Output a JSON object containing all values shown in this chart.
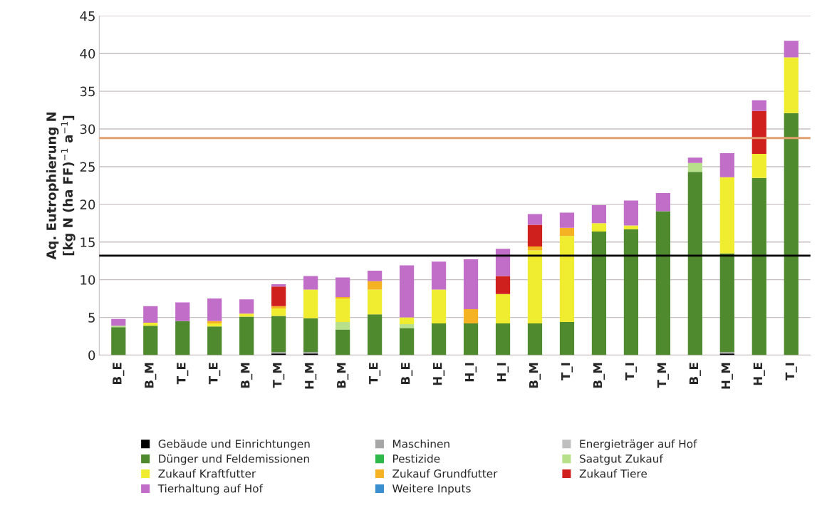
{
  "chart_data": {
    "type": "bar",
    "stacked": true,
    "ylabel": "Aq. Eutrophierung N\n[kg N (ha FF)$^{−1}$ a$^{−1}$]",
    "categories": [
      "B_E",
      "B_M",
      "T_E",
      "T_E",
      "B_M",
      "T_M",
      "H_M",
      "B_M",
      "T_E",
      "B_E",
      "H_E",
      "H_I",
      "H_I",
      "B_M",
      "T_I",
      "B_M",
      "T_I",
      "T_M",
      "B_E",
      "H_M",
      "H_E",
      "T_I"
    ],
    "series": [
      {
        "name": "Gebäude und Einrichtungen",
        "color": "#000000",
        "values": [
          0,
          0,
          0,
          0,
          0,
          0.2,
          0.2,
          0,
          0,
          0,
          0,
          0,
          0,
          0,
          0,
          0,
          0,
          0,
          0,
          0.2,
          0,
          0
        ]
      },
      {
        "name": "Maschinen",
        "color": "#a6a6a6",
        "values": [
          0,
          0,
          0,
          0,
          0,
          0.2,
          0.2,
          0,
          0,
          0,
          0,
          0,
          0,
          0,
          0,
          0,
          0,
          0,
          0,
          0.2,
          0,
          0
        ]
      },
      {
        "name": "Energieträger auf Hof",
        "color": "#bfbfbf",
        "values": [
          0,
          0,
          0,
          0,
          0,
          0,
          0,
          0,
          0,
          0,
          0,
          0,
          0,
          0,
          0,
          0,
          0,
          0,
          0,
          0,
          0,
          0
        ]
      },
      {
        "name": "Dünger und Feldemissionen",
        "color": "#4f8a2e",
        "values": [
          3.7,
          3.9,
          4.5,
          3.8,
          5.1,
          4.8,
          4.5,
          3.4,
          5.4,
          3.6,
          4.2,
          4.2,
          4.2,
          4.2,
          4.4,
          16.4,
          16.7,
          19.1,
          24.3,
          13.1,
          23.5,
          32.1
        ]
      },
      {
        "name": "Pestizide",
        "color": "#2eb84a",
        "values": [
          0,
          0,
          0,
          0,
          0,
          0,
          0,
          0,
          0,
          0,
          0,
          0,
          0,
          0,
          0,
          0,
          0,
          0,
          0,
          0,
          0,
          0
        ]
      },
      {
        "name": "Saatgut Zukauf",
        "color": "#b8e08a",
        "values": [
          0.2,
          0,
          0,
          0,
          0,
          0,
          0,
          1.0,
          0,
          0.5,
          0,
          0,
          0,
          0,
          0,
          0,
          0,
          0,
          1.2,
          0,
          0,
          0
        ]
      },
      {
        "name": "Zukauf Kraftfutter",
        "color": "#f0ec30",
        "values": [
          0,
          0.4,
          0,
          0.4,
          0.4,
          1.0,
          3.8,
          3.1,
          3.3,
          0.9,
          4.5,
          0,
          3.9,
          9.7,
          11.4,
          1.1,
          0.5,
          0,
          0,
          10.1,
          3.2,
          7.4
        ]
      },
      {
        "name": "Zukauf Grundfutter",
        "color": "#f5b324",
        "values": [
          0,
          0,
          0,
          0.3,
          0,
          0.3,
          0,
          0.2,
          1.1,
          0,
          0,
          1.9,
          0,
          0.5,
          1.1,
          0,
          0,
          0,
          0,
          0,
          0,
          0
        ]
      },
      {
        "name": "Zukauf Tiere",
        "color": "#d0201e",
        "values": [
          0,
          0,
          0,
          0,
          0,
          2.6,
          0,
          0,
          0,
          0,
          0,
          0,
          2.4,
          2.9,
          0,
          0,
          0,
          0,
          0,
          0,
          5.7,
          0
        ]
      },
      {
        "name": "Tierhaltung auf Hof",
        "color": "#c06ec8",
        "values": [
          0.9,
          2.2,
          2.5,
          3.0,
          1.9,
          0.3,
          1.8,
          2.6,
          1.4,
          6.9,
          3.7,
          6.6,
          3.6,
          1.4,
          2.0,
          2.4,
          3.3,
          2.4,
          0.7,
          3.2,
          1.4,
          2.2
        ]
      },
      {
        "name": "Weitere Inputs",
        "color": "#3a8fd0",
        "values": [
          0,
          0,
          0,
          0,
          0,
          0,
          0,
          0,
          0,
          0,
          0,
          0,
          0,
          0,
          0,
          0,
          0,
          0,
          0,
          0,
          0,
          0
        ]
      }
    ],
    "ylim": [
      0,
      45
    ],
    "yticks": [
      0,
      5,
      10,
      15,
      20,
      25,
      30,
      35,
      40,
      45
    ],
    "grid": "y",
    "legend": "bottom",
    "ref_lines": [
      {
        "axis": "y",
        "value": 13.2,
        "color": "#000000"
      },
      {
        "axis": "y",
        "value": 28.8,
        "color": "#e0a070"
      }
    ]
  }
}
